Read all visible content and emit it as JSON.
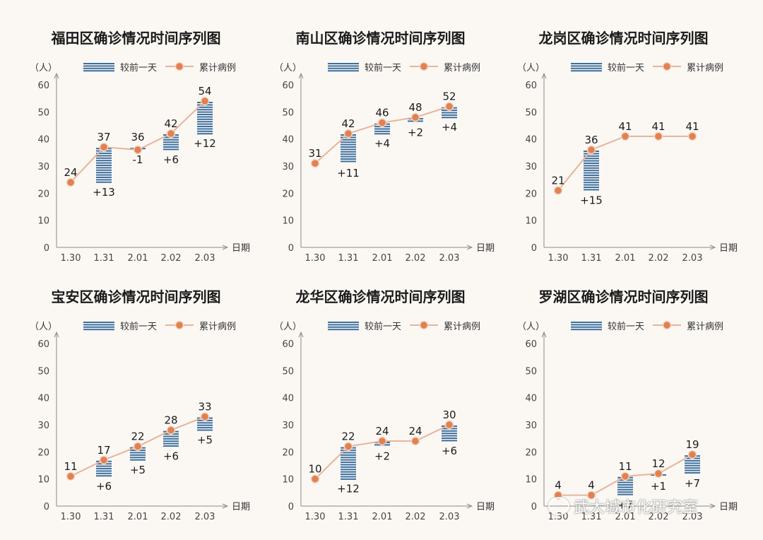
{
  "watermark": "武大城市化研究室",
  "common": {
    "unit": "（人）",
    "xlabel": "日期",
    "legend_change": "较前一天",
    "legend_cum": "累计病例"
  },
  "colors": {
    "bar": "#3d6f9e",
    "line": "#e8b39a",
    "marker": "#e2814f",
    "axis": "#8a8a8a"
  },
  "chart_data": [
    {
      "type": "line",
      "title": "福田区确诊情况时间序列图",
      "categories": [
        "1.30",
        "1.31",
        "2.01",
        "2.02",
        "2.03"
      ],
      "series": [
        {
          "name": "累计病例",
          "values": [
            24,
            37,
            36,
            42,
            54
          ]
        },
        {
          "name": "较前一天",
          "values": [
            null,
            13,
            -1,
            6,
            12
          ],
          "labels": [
            "",
            "+13",
            "-1",
            "+6",
            "+12"
          ]
        }
      ],
      "ylim": [
        0,
        60
      ],
      "yticks": [
        0,
        10,
        20,
        30,
        40,
        50,
        60
      ]
    },
    {
      "type": "line",
      "title": "南山区确诊情况时间序列图",
      "categories": [
        "1.30",
        "1.31",
        "2.01",
        "2.02",
        "2.03"
      ],
      "series": [
        {
          "name": "累计病例",
          "values": [
            31,
            42,
            46,
            48,
            52
          ]
        },
        {
          "name": "较前一天",
          "values": [
            null,
            11,
            4,
            2,
            4
          ],
          "labels": [
            "",
            "+11",
            "+4",
            "+2",
            "+4"
          ]
        }
      ],
      "ylim": [
        0,
        60
      ],
      "yticks": [
        0,
        10,
        20,
        30,
        40,
        50,
        60
      ]
    },
    {
      "type": "line",
      "title": "龙岗区确诊情况时间序列图",
      "categories": [
        "1.30",
        "1.31",
        "2.01",
        "2.02",
        "2.03"
      ],
      "series": [
        {
          "name": "累计病例",
          "values": [
            21,
            36,
            41,
            41,
            41
          ]
        },
        {
          "name": "较前一天",
          "values": [
            null,
            15,
            0,
            0,
            0
          ],
          "labels": [
            "",
            "+15",
            "",
            "",
            ""
          ]
        }
      ],
      "ylim": [
        0,
        60
      ],
      "yticks": [
        0,
        10,
        20,
        30,
        40,
        50,
        60
      ]
    },
    {
      "type": "line",
      "title": "宝安区确诊情况时间序列图",
      "categories": [
        "1.30",
        "1.31",
        "2.01",
        "2.02",
        "2.03"
      ],
      "series": [
        {
          "name": "累计病例",
          "values": [
            11,
            17,
            22,
            28,
            33
          ]
        },
        {
          "name": "较前一天",
          "values": [
            null,
            6,
            5,
            6,
            5
          ],
          "labels": [
            "",
            "+6",
            "+5",
            "+6",
            "+5"
          ]
        }
      ],
      "ylim": [
        0,
        60
      ],
      "yticks": [
        0,
        10,
        20,
        30,
        40,
        50,
        60
      ]
    },
    {
      "type": "line",
      "title": "龙华区确诊情况时间序列图",
      "categories": [
        "1.30",
        "1.31",
        "2.01",
        "2.02",
        "2.03"
      ],
      "series": [
        {
          "name": "累计病例",
          "values": [
            10,
            22,
            24,
            24,
            30
          ]
        },
        {
          "name": "较前一天",
          "values": [
            null,
            12,
            2,
            0,
            6
          ],
          "labels": [
            "",
            "+12",
            "+2",
            "",
            "+6"
          ]
        }
      ],
      "ylim": [
        0,
        60
      ],
      "yticks": [
        0,
        10,
        20,
        30,
        40,
        50,
        60
      ]
    },
    {
      "type": "line",
      "title": "罗湖区确诊情况时间序列图",
      "categories": [
        "1.30",
        "1.31",
        "2.01",
        "2.02",
        "2.03"
      ],
      "series": [
        {
          "name": "累计病例",
          "values": [
            4,
            4,
            11,
            12,
            19
          ]
        },
        {
          "name": "较前一天",
          "values": [
            null,
            0,
            7,
            1,
            7
          ],
          "labels": [
            "",
            "",
            "+7",
            "+1",
            "+7"
          ]
        }
      ],
      "ylim": [
        0,
        60
      ],
      "yticks": [
        0,
        10,
        20,
        30,
        40,
        50,
        60
      ]
    }
  ]
}
